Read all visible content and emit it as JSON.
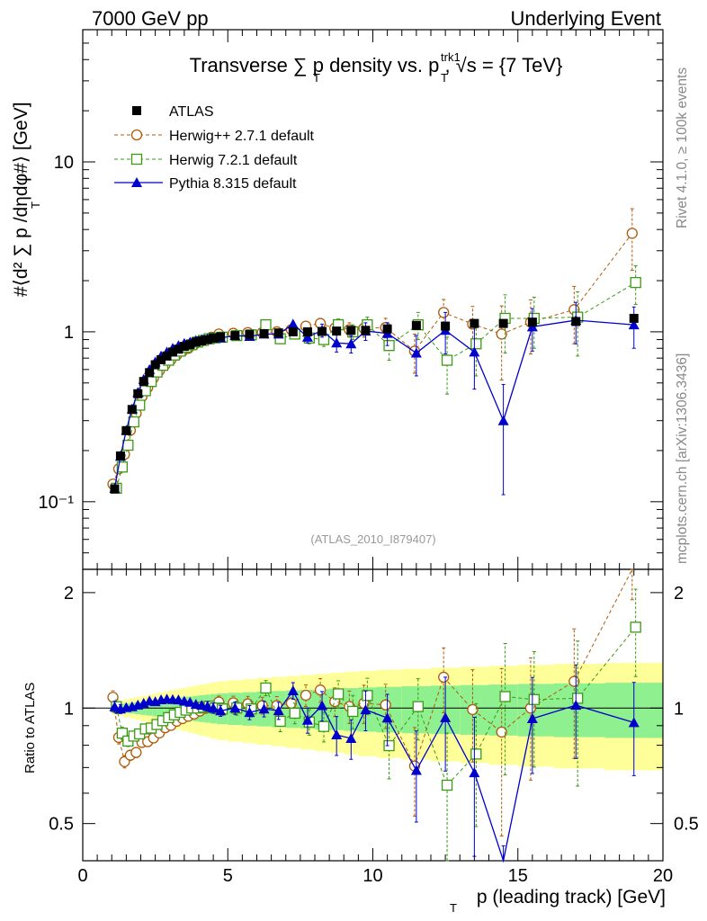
{
  "header": {
    "left": "7000 GeV pp",
    "right": "Underlying Event",
    "title": "Transverse ∑ p   density vs. p   , √s = {7 TeV}",
    "title_sub_t1": "T",
    "title_sub_t2": "T",
    "title_sup": "trk1",
    "side_top": "Rivet 4.1.0, ≥ 100k events",
    "side_bottom": "mcplots.cern.ch [arXiv:1306.3436]",
    "reference": "(ATLAS_2010_I879407)"
  },
  "axes": {
    "ylabel_main": "#⟨d² ∑ p  /dηdφ#⟩ [GeV]",
    "ylabel_main_sub": "T",
    "ylabel_ratio": "Ratio to ATLAS",
    "xlabel": "p  (leading track) [GeV]",
    "xlabel_sub": "T",
    "main_yticks": [
      {
        "value": 0.1,
        "label": "10⁻¹"
      },
      {
        "value": 1,
        "label": "1"
      },
      {
        "value": 10,
        "label": "10"
      }
    ],
    "ratio_yticks": [
      "0.5",
      "1",
      "2"
    ],
    "xticks": [
      "0",
      "5",
      "10",
      "15",
      "20"
    ]
  },
  "legend": {
    "atlas": "ATLAS",
    "herwigpp": "Herwig++ 2.7.1 default",
    "herwig7": "Herwig 7.2.1 default",
    "pythia": "Pythia 8.315 default"
  },
  "colors": {
    "atlas": "#000000",
    "herwigpp": "#b05a0c",
    "herwig7": "#3b9a14",
    "pythia": "#0000cc",
    "band_syst": "#ffff9a",
    "band_stat": "#8ef08e"
  },
  "chart_data": {
    "type": "scatter",
    "title": "Transverse sum pT density vs. pT trk1, sqrt(s) = {7 TeV}",
    "xlabel": "pT (leading track) [GeV]",
    "ylabel": "<d2 sum pT / deta dphi> [GeV]",
    "xlim": [
      0,
      20
    ],
    "ylim_main": [
      0.04,
      60
    ],
    "ylim_ratio": [
      0.4,
      2.3
    ],
    "yscale_main": "log",
    "yscale_ratio": "log",
    "x": [
      1.1,
      1.3,
      1.5,
      1.7,
      1.9,
      2.1,
      2.3,
      2.5,
      2.7,
      2.9,
      3.1,
      3.3,
      3.5,
      3.7,
      3.9,
      4.1,
      4.3,
      4.5,
      4.75,
      5.25,
      5.75,
      6.25,
      6.75,
      7.25,
      7.75,
      8.25,
      8.75,
      9.25,
      9.75,
      10.5,
      11.5,
      12.5,
      13.5,
      14.5,
      15.5,
      17.0,
      19.0
    ],
    "series": [
      {
        "name": "ATLAS",
        "values": [
          0.119,
          0.186,
          0.262,
          0.349,
          0.432,
          0.51,
          0.575,
          0.64,
          0.685,
          0.72,
          0.76,
          0.79,
          0.82,
          0.84,
          0.87,
          0.885,
          0.9,
          0.92,
          0.935,
          0.95,
          0.965,
          0.975,
          0.985,
          1.0,
          1.0,
          1.005,
          1.01,
          1.02,
          1.02,
          1.04,
          1.09,
          1.08,
          1.12,
          1.12,
          1.14,
          1.15,
          1.2
        ]
      },
      {
        "name": "Herwig++ 2.7.1 default",
        "values": [
          0.127,
          0.156,
          0.19,
          0.263,
          0.331,
          0.415,
          0.47,
          0.535,
          0.59,
          0.64,
          0.685,
          0.73,
          0.77,
          0.8,
          0.84,
          0.87,
          0.9,
          0.93,
          0.97,
          0.98,
          0.99,
          0.99,
          1.0,
          1.03,
          1.08,
          1.12,
          1.05,
          1.03,
          1.05,
          1.06,
          0.77,
          1.3,
          1.11,
          0.97,
          1.14,
          1.35,
          3.8
        ],
        "err": [
          0.005,
          0.006,
          0.007,
          0.008,
          0.01,
          0.012,
          0.012,
          0.013,
          0.015,
          0.016,
          0.018,
          0.02,
          0.02,
          0.022,
          0.024,
          0.026,
          0.028,
          0.03,
          0.035,
          0.04,
          0.045,
          0.05,
          0.055,
          0.06,
          0.07,
          0.08,
          0.09,
          0.1,
          0.12,
          0.14,
          0.2,
          0.25,
          0.3,
          0.45,
          0.4,
          0.5,
          1.5
        ]
      },
      {
        "name": "Herwig 7.2.1 default",
        "values": [
          0.12,
          0.16,
          0.215,
          0.295,
          0.37,
          0.45,
          0.51,
          0.58,
          0.635,
          0.68,
          0.73,
          0.77,
          0.81,
          0.84,
          0.87,
          0.89,
          0.91,
          0.92,
          0.93,
          0.95,
          0.96,
          1.1,
          0.91,
          0.97,
          0.92,
          0.9,
          1.1,
          1.0,
          1.1,
          0.83,
          1.1,
          0.68,
          0.85,
          1.2,
          1.2,
          1.22,
          1.95
        ],
        "err": [
          0.005,
          0.006,
          0.007,
          0.008,
          0.01,
          0.012,
          0.012,
          0.013,
          0.015,
          0.016,
          0.018,
          0.02,
          0.02,
          0.022,
          0.024,
          0.026,
          0.028,
          0.03,
          0.035,
          0.04,
          0.045,
          0.05,
          0.055,
          0.06,
          0.07,
          0.08,
          0.09,
          0.1,
          0.12,
          0.15,
          0.2,
          0.25,
          0.3,
          0.45,
          0.4,
          0.5,
          0.5
        ]
      },
      {
        "name": "Pythia 8.315 default",
        "values": [
          0.12,
          0.185,
          0.263,
          0.352,
          0.44,
          0.525,
          0.6,
          0.665,
          0.72,
          0.76,
          0.8,
          0.83,
          0.855,
          0.87,
          0.89,
          0.9,
          0.91,
          0.92,
          0.92,
          0.95,
          0.94,
          0.97,
          0.97,
          1.11,
          0.93,
          1.02,
          0.86,
          0.85,
          1.01,
          0.98,
          0.75,
          1.02,
          0.76,
          0.3,
          1.07,
          1.17,
          1.1
        ],
        "err": [
          0.004,
          0.005,
          0.006,
          0.008,
          0.01,
          0.01,
          0.012,
          0.013,
          0.014,
          0.015,
          0.016,
          0.018,
          0.02,
          0.02,
          0.022,
          0.024,
          0.026,
          0.028,
          0.03,
          0.035,
          0.04,
          0.045,
          0.05,
          0.055,
          0.07,
          0.09,
          0.1,
          0.1,
          0.12,
          0.15,
          0.2,
          0.28,
          0.3,
          0.19,
          0.3,
          0.32,
          0.3
        ]
      }
    ]
  }
}
